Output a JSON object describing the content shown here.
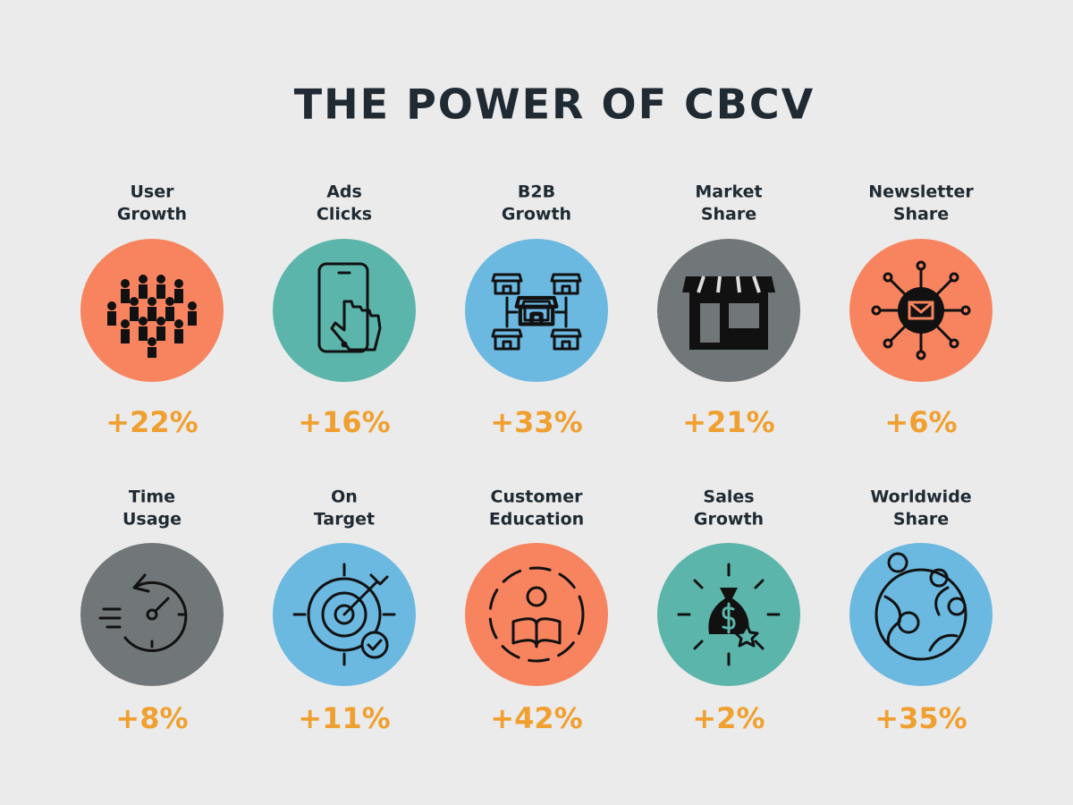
{
  "title": "THE POWER OF CBCV",
  "items": [
    {
      "label": [
        "User",
        "Growth"
      ],
      "value": "+22%",
      "color": "#f7845e"
    },
    {
      "label": [
        "Ads",
        "Clicks"
      ],
      "value": "+16%",
      "color": "#5bb5ab"
    },
    {
      "label": [
        "B2B",
        "Growth"
      ],
      "value": "+33%",
      "color": "#6bb8e0"
    },
    {
      "label": [
        "Market",
        "Share"
      ],
      "value": "+21%",
      "color": "#717678"
    },
    {
      "label": [
        "Newsletter",
        "Share"
      ],
      "value": "+6%",
      "color": "#f7845e"
    },
    {
      "label": [
        "Time",
        "Usage"
      ],
      "value": "+8%",
      "color": "#717678"
    },
    {
      "label": [
        "On",
        "Target"
      ],
      "value": "+11%",
      "color": "#6bb8e0"
    },
    {
      "label": [
        "Customer",
        "Education"
      ],
      "value": "+42%",
      "color": "#f7845e"
    },
    {
      "label": [
        "Sales",
        "Growth"
      ],
      "value": "+2%",
      "color": "#5bb5ab"
    },
    {
      "label": [
        "Worldwide",
        "Share"
      ],
      "value": "+35%",
      "color": "#6bb8e0"
    }
  ]
}
